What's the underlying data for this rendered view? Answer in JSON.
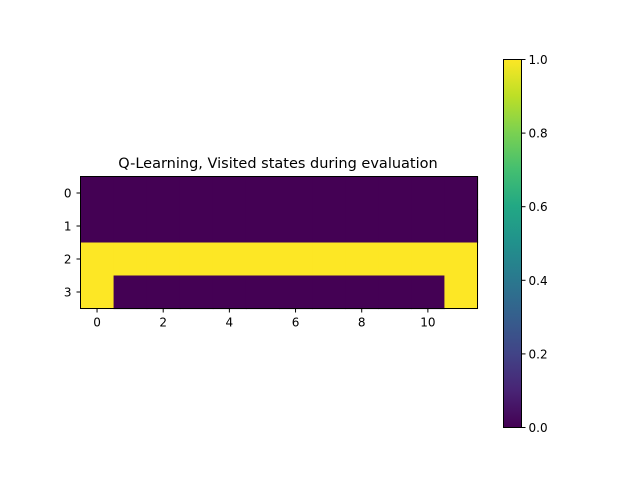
{
  "chart_data": [
    {
      "type": "heatmap",
      "title": "Q-Learning, Visited states during evaluation",
      "xlabel": "",
      "ylabel": "",
      "rows": [
        0,
        1,
        2,
        3
      ],
      "columns": [
        0,
        1,
        2,
        3,
        4,
        5,
        6,
        7,
        8,
        9,
        10,
        11
      ],
      "values": [
        [
          0,
          0,
          0,
          0,
          0,
          0,
          0,
          0,
          0,
          0,
          0,
          0
        ],
        [
          0,
          0,
          0,
          0,
          0,
          0,
          0,
          0,
          0,
          0,
          0,
          0
        ],
        [
          1,
          1,
          1,
          1,
          1,
          1,
          1,
          1,
          1,
          1,
          1,
          1
        ],
        [
          1,
          0,
          0,
          0,
          0,
          0,
          0,
          0,
          0,
          0,
          0,
          1
        ]
      ],
      "xticks": [
        "0",
        "2",
        "4",
        "6",
        "8",
        "10"
      ],
      "yticks": [
        "0",
        "1",
        "2",
        "3"
      ],
      "colormap": "viridis",
      "vmin": 0,
      "vmax": 1,
      "colorbar": {
        "ticks": [
          "0.0",
          "0.2",
          "0.4",
          "0.6",
          "0.8",
          "1.0"
        ],
        "range": [
          0,
          1
        ]
      },
      "grid": false
    }
  ]
}
